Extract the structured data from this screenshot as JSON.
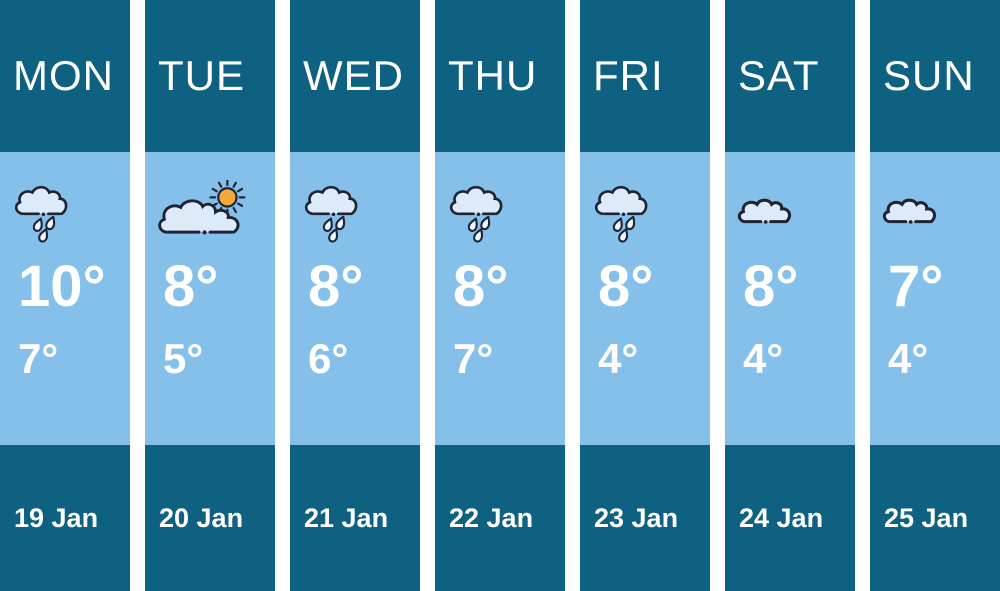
{
  "colors": {
    "teal": "#0e6181",
    "lightblue": "#85c0ea",
    "cloudfill": "#ddeafa",
    "dropfill": "#eff6fd",
    "outline": "#1d2433",
    "sun": "#f5a93b",
    "text": "#ffffff"
  },
  "days": [
    {
      "name": "MON",
      "icon": "rain-cloud",
      "high": "10°",
      "low": "7°",
      "date": "19 Jan"
    },
    {
      "name": "TUE",
      "icon": "sun-behind-cloud",
      "high": "8°",
      "low": "5°",
      "date": "20 Jan"
    },
    {
      "name": "WED",
      "icon": "rain-cloud",
      "high": "8°",
      "low": "6°",
      "date": "21 Jan"
    },
    {
      "name": "THU",
      "icon": "rain-cloud",
      "high": "8°",
      "low": "7°",
      "date": "22 Jan"
    },
    {
      "name": "FRI",
      "icon": "rain-cloud",
      "high": "8°",
      "low": "4°",
      "date": "23 Jan"
    },
    {
      "name": "SAT",
      "icon": "cloud",
      "high": "8°",
      "low": "4°",
      "date": "24 Jan"
    },
    {
      "name": "SUN",
      "icon": "cloud",
      "high": "7°",
      "low": "4°",
      "date": "25 Jan"
    }
  ]
}
